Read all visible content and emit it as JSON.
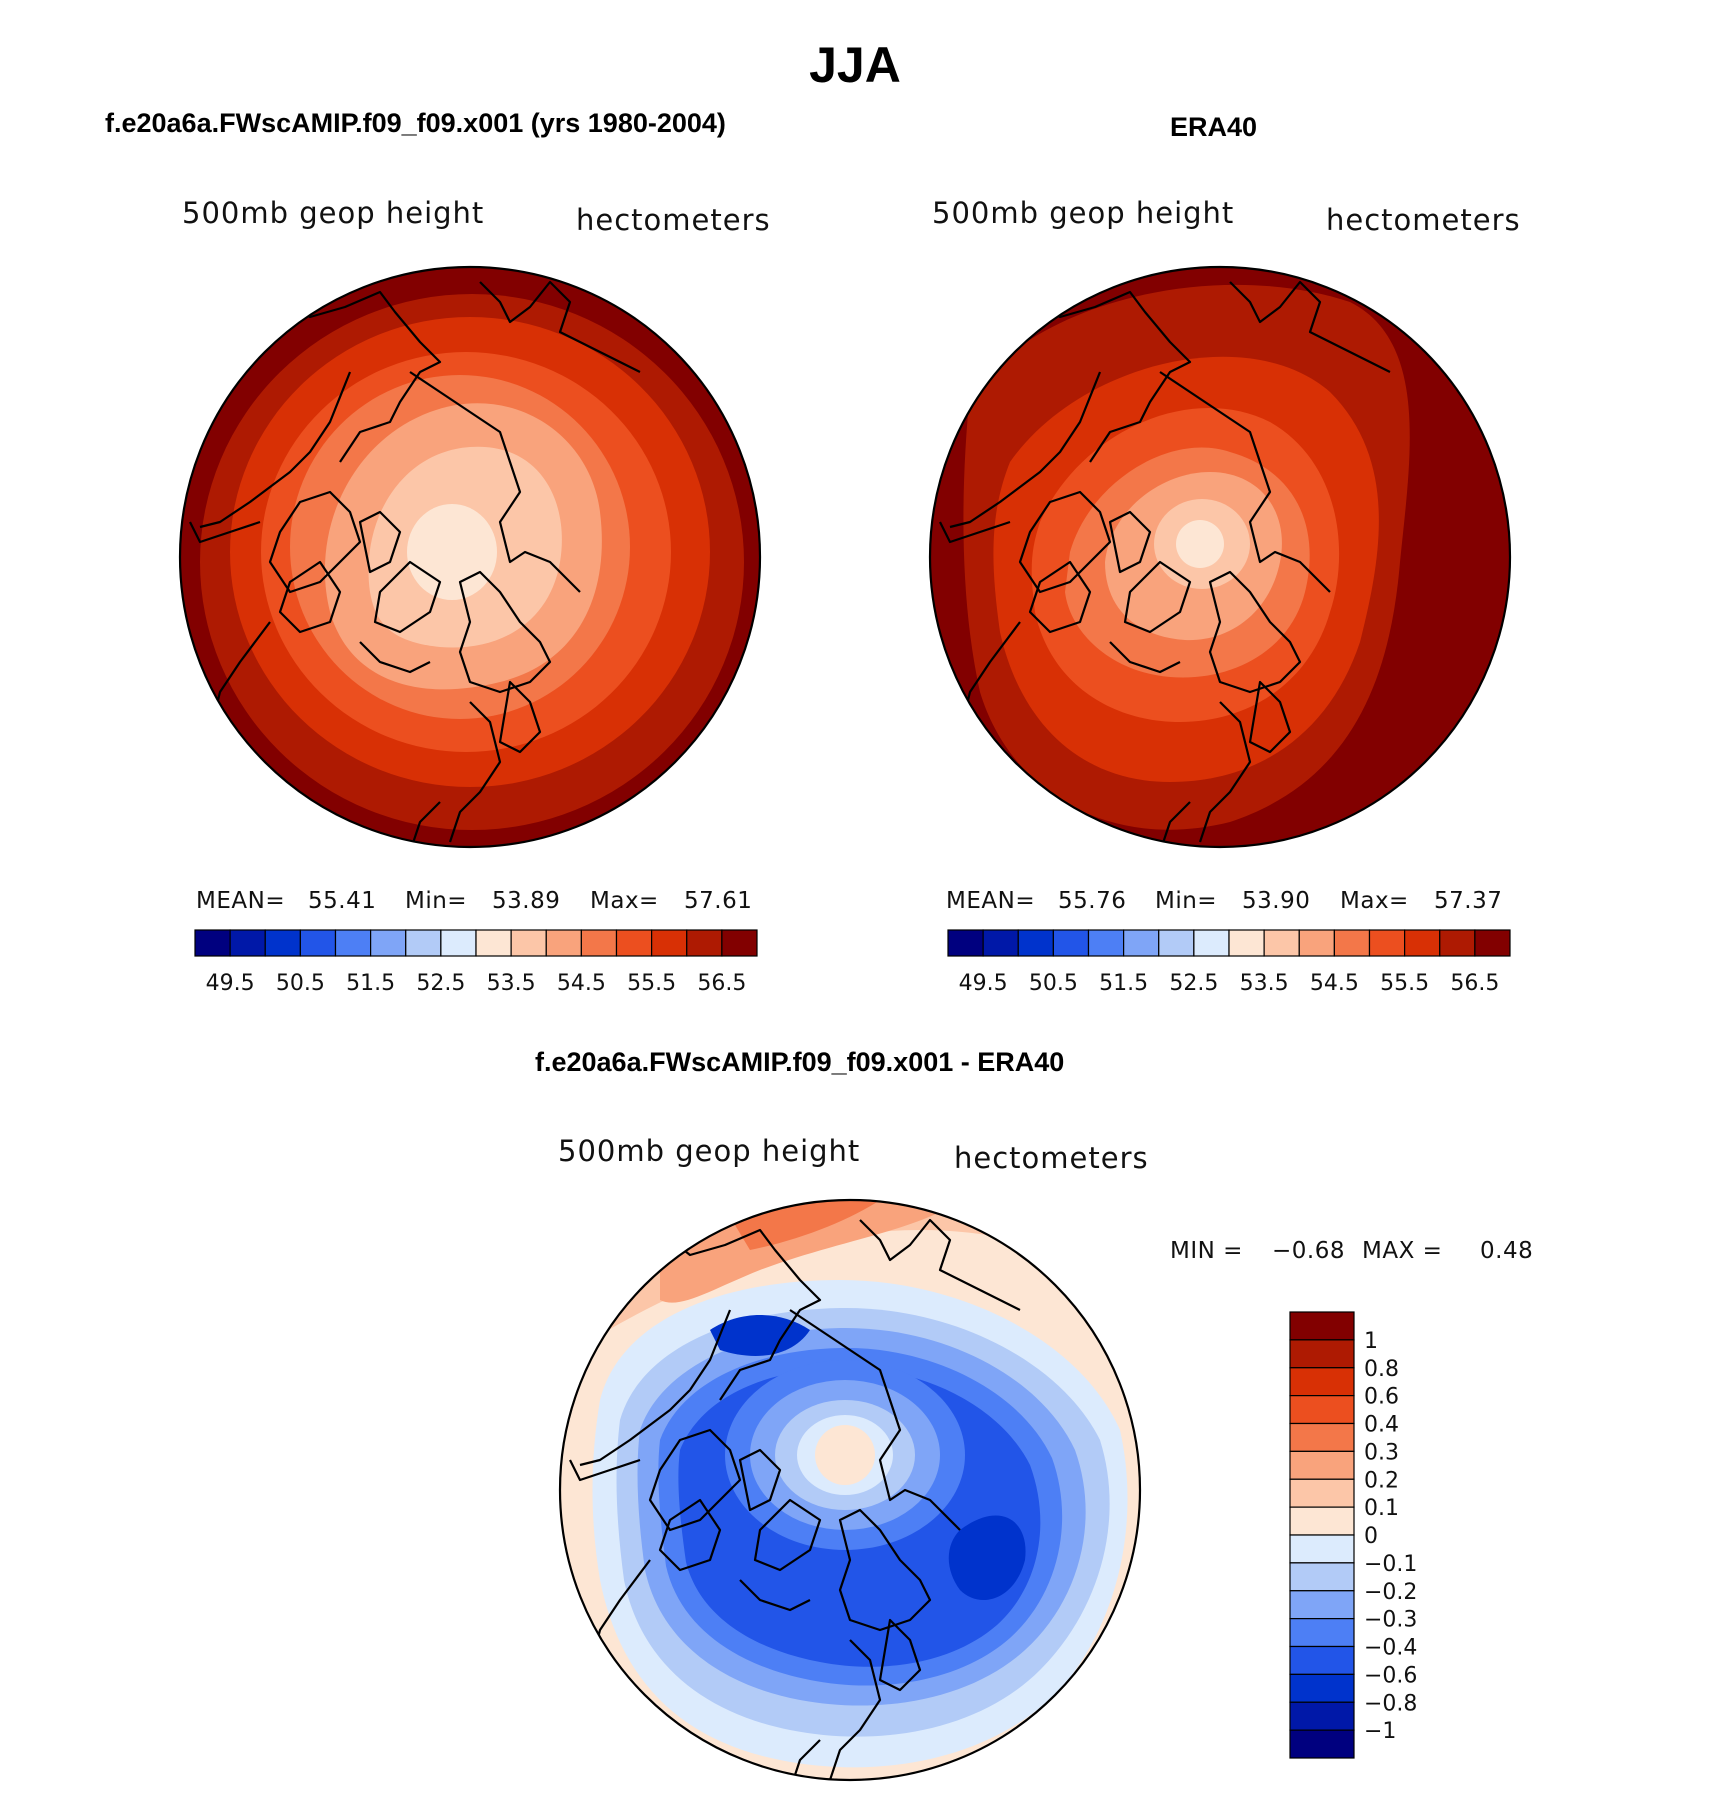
{
  "figure": {
    "title": "JJA"
  },
  "panels": [
    {
      "title": "f.e20a6a.FWscAMIP.f09_f09.x001 (yrs 1980-2004)",
      "variable": "500mb  geop  height",
      "units": "hectometers",
      "stats": {
        "mean_label": "MEAN=",
        "mean": "55.41",
        "min_label": "Min=",
        "min": "53.89",
        "max_label": "Max=",
        "max": "57.61"
      }
    },
    {
      "title": "ERA40",
      "variable": "500mb  geop  height",
      "units": "hectometers",
      "stats": {
        "mean_label": "MEAN=",
        "mean": "55.76",
        "min_label": "Min=",
        "min": "53.90",
        "max_label": "Max=",
        "max": "57.37"
      }
    },
    {
      "title": "f.e20a6a.FWscAMIP.f09_f09.x001 - ERA40",
      "variable": "500mb  geop  height",
      "units": "hectometers",
      "stats": {
        "min_label": "MIN =",
        "min": "−0.68",
        "max_label": "MAX =",
        "max": "0.48"
      }
    }
  ],
  "chart_data": [
    {
      "type": "heatmap",
      "projection": "north-polar stereographic",
      "title": "f.e20a6a.FWscAMIP.f09_f09.x001 (yrs 1980-2004)",
      "field": "500mb geop height (hectometers)",
      "mean": 55.41,
      "min": 53.89,
      "max": 57.61,
      "colorbar": {
        "levels": [
          49.5,
          50,
          50.5,
          51,
          51.5,
          52,
          52.5,
          53,
          53.5,
          54,
          54.5,
          55,
          55.5,
          56,
          56.5
        ],
        "tick_labels": [
          "49.5",
          "50.5",
          "51.5",
          "52.5",
          "53.5",
          "54.5",
          "55.5",
          "56.5"
        ],
        "colors": [
          "#00007f",
          "#0018a8",
          "#0033cc",
          "#2255e8",
          "#4d7ff5",
          "#7fa5f7",
          "#b2cbf7",
          "#dcebfd",
          "#fde6d4",
          "#fcc6a8",
          "#f9a37c",
          "#f37749",
          "#ec4f1f",
          "#d83005",
          "#ae1a02",
          "#820000"
        ]
      }
    },
    {
      "type": "heatmap",
      "projection": "north-polar stereographic",
      "title": "ERA40",
      "field": "500mb geop height (hectometers)",
      "mean": 55.76,
      "min": 53.9,
      "max": 57.37,
      "colorbar": {
        "levels": [
          49.5,
          50,
          50.5,
          51,
          51.5,
          52,
          52.5,
          53,
          53.5,
          54,
          54.5,
          55,
          55.5,
          56,
          56.5
        ],
        "tick_labels": [
          "49.5",
          "50.5",
          "51.5",
          "52.5",
          "53.5",
          "54.5",
          "55.5",
          "56.5"
        ],
        "colors": [
          "#00007f",
          "#0018a8",
          "#0033cc",
          "#2255e8",
          "#4d7ff5",
          "#7fa5f7",
          "#b2cbf7",
          "#dcebfd",
          "#fde6d4",
          "#fcc6a8",
          "#f9a37c",
          "#f37749",
          "#ec4f1f",
          "#d83005",
          "#ae1a02",
          "#820000"
        ]
      }
    },
    {
      "type": "heatmap",
      "projection": "north-polar stereographic",
      "title": "f.e20a6a.FWscAMIP.f09_f09.x001 - ERA40",
      "field": "500mb geop height difference (hectometers)",
      "min": -0.68,
      "max": 0.48,
      "colorbar": {
        "tick_labels": [
          "1",
          "0.8",
          "0.6",
          "0.4",
          "0.3",
          "0.2",
          "0.1",
          "0",
          "−0.1",
          "−0.2",
          "−0.3",
          "−0.4",
          "−0.6",
          "−0.8",
          "−1"
        ],
        "colors": [
          "#820000",
          "#ae1a02",
          "#d83005",
          "#ec4f1f",
          "#f37749",
          "#f9a37c",
          "#fcc6a8",
          "#fde6d4",
          "#dcebfd",
          "#b2cbf7",
          "#7fa5f7",
          "#4d7ff5",
          "#2255e8",
          "#0033cc",
          "#0018a8",
          "#00007f"
        ]
      }
    }
  ]
}
